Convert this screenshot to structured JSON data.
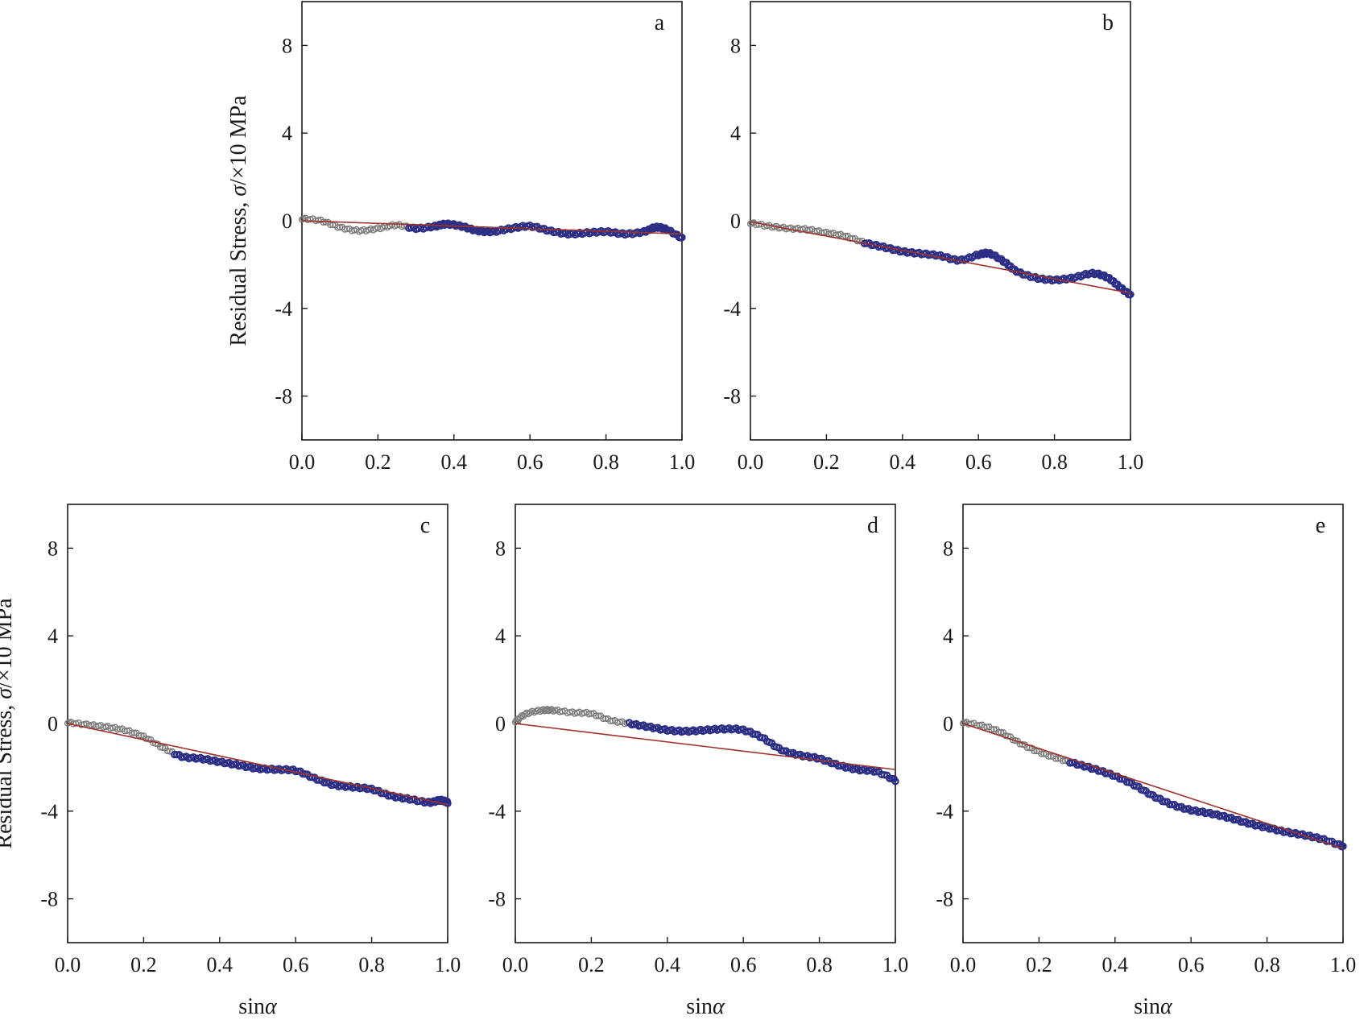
{
  "figure": {
    "ylabel_main": "Residual Stress, ",
    "ylabel_sym": "σ",
    "ylabel_unit": "/×10 MPa",
    "xlabel_main": "sin",
    "xlabel_sym": "α"
  },
  "colors": {
    "marker_light": "#7a7a7a",
    "marker_dark": "#2b2f85",
    "fit_line": "#a0302a",
    "axis": "#1a1a1a"
  },
  "chart_data": [
    {
      "type": "scatter",
      "label": "a",
      "show_ylabel": true,
      "show_xlabel": false,
      "xlim": [
        0,
        1
      ],
      "ylim": [
        -10,
        10
      ],
      "xticks": [
        "0.0",
        "0.2",
        "0.4",
        "0.6",
        "0.8",
        "1.0"
      ],
      "yticks": [
        "8",
        "4",
        "0",
        "-4",
        "-8"
      ],
      "fit": [
        [
          0,
          0.0
        ],
        [
          1,
          -0.6
        ]
      ],
      "points": [
        [
          0,
          0.1
        ],
        [
          0.05,
          0.0
        ],
        [
          0.1,
          -0.3
        ],
        [
          0.15,
          -0.45
        ],
        [
          0.2,
          -0.35
        ],
        [
          0.25,
          -0.2
        ],
        [
          0.3,
          -0.35
        ],
        [
          0.35,
          -0.25
        ],
        [
          0.38,
          -0.15
        ],
        [
          0.42,
          -0.25
        ],
        [
          0.46,
          -0.45
        ],
        [
          0.5,
          -0.5
        ],
        [
          0.55,
          -0.35
        ],
        [
          0.6,
          -0.25
        ],
        [
          0.65,
          -0.45
        ],
        [
          0.7,
          -0.6
        ],
        [
          0.75,
          -0.55
        ],
        [
          0.8,
          -0.5
        ],
        [
          0.85,
          -0.6
        ],
        [
          0.9,
          -0.5
        ],
        [
          0.93,
          -0.3
        ],
        [
          0.96,
          -0.4
        ],
        [
          1.0,
          -0.8
        ]
      ],
      "split": 0.28
    },
    {
      "type": "scatter",
      "label": "b",
      "show_ylabel": false,
      "show_xlabel": false,
      "xlim": [
        0,
        1
      ],
      "ylim": [
        -10,
        10
      ],
      "xticks": [
        "0.0",
        "0.2",
        "0.4",
        "0.6",
        "0.8",
        "1.0"
      ],
      "yticks": [
        "8",
        "4",
        "0",
        "-4",
        "-8"
      ],
      "fit": [
        [
          0,
          -0.05
        ],
        [
          1,
          -3.3
        ]
      ],
      "points": [
        [
          0,
          -0.1
        ],
        [
          0.05,
          -0.25
        ],
        [
          0.1,
          -0.35
        ],
        [
          0.15,
          -0.4
        ],
        [
          0.2,
          -0.55
        ],
        [
          0.25,
          -0.7
        ],
        [
          0.3,
          -1.0
        ],
        [
          0.35,
          -1.2
        ],
        [
          0.4,
          -1.4
        ],
        [
          0.45,
          -1.5
        ],
        [
          0.5,
          -1.6
        ],
        [
          0.55,
          -1.8
        ],
        [
          0.6,
          -1.55
        ],
        [
          0.63,
          -1.5
        ],
        [
          0.67,
          -1.9
        ],
        [
          0.7,
          -2.3
        ],
        [
          0.75,
          -2.6
        ],
        [
          0.8,
          -2.7
        ],
        [
          0.85,
          -2.6
        ],
        [
          0.9,
          -2.4
        ],
        [
          0.94,
          -2.6
        ],
        [
          0.97,
          -3.0
        ],
        [
          1.0,
          -3.4
        ]
      ],
      "split": 0.3
    },
    {
      "type": "scatter",
      "label": "c",
      "show_ylabel": true,
      "show_xlabel": true,
      "xlim": [
        0,
        1
      ],
      "ylim": [
        -10,
        10
      ],
      "xticks": [
        "0.0",
        "0.2",
        "0.4",
        "0.6",
        "0.8",
        "1.0"
      ],
      "yticks": [
        "8",
        "4",
        "0",
        "-4",
        "-8"
      ],
      "fit": [
        [
          0,
          0.0
        ],
        [
          1,
          -3.7
        ]
      ],
      "points": [
        [
          0,
          0.05
        ],
        [
          0.05,
          -0.05
        ],
        [
          0.1,
          -0.15
        ],
        [
          0.15,
          -0.3
        ],
        [
          0.2,
          -0.6
        ],
        [
          0.25,
          -1.1
        ],
        [
          0.3,
          -1.5
        ],
        [
          0.35,
          -1.6
        ],
        [
          0.4,
          -1.75
        ],
        [
          0.45,
          -1.9
        ],
        [
          0.5,
          -2.05
        ],
        [
          0.55,
          -2.1
        ],
        [
          0.6,
          -2.15
        ],
        [
          0.65,
          -2.5
        ],
        [
          0.7,
          -2.8
        ],
        [
          0.75,
          -2.9
        ],
        [
          0.8,
          -3.0
        ],
        [
          0.85,
          -3.3
        ],
        [
          0.9,
          -3.45
        ],
        [
          0.95,
          -3.6
        ],
        [
          0.98,
          -3.5
        ],
        [
          1.0,
          -3.6
        ]
      ],
      "split": 0.28
    },
    {
      "type": "scatter",
      "label": "d",
      "show_ylabel": false,
      "show_xlabel": true,
      "xlim": [
        0,
        1
      ],
      "ylim": [
        -10,
        10
      ],
      "xticks": [
        "0.0",
        "0.2",
        "0.4",
        "0.6",
        "0.8",
        "1.0"
      ],
      "yticks": [
        "8",
        "4",
        "0",
        "-4",
        "-8"
      ],
      "fit": [
        [
          0,
          0.0
        ],
        [
          1,
          -2.1
        ]
      ],
      "points": [
        [
          0,
          0.1
        ],
        [
          0.03,
          0.45
        ],
        [
          0.07,
          0.6
        ],
        [
          0.1,
          0.6
        ],
        [
          0.15,
          0.5
        ],
        [
          0.2,
          0.45
        ],
        [
          0.25,
          0.15
        ],
        [
          0.3,
          0.0
        ],
        [
          0.35,
          -0.15
        ],
        [
          0.4,
          -0.3
        ],
        [
          0.45,
          -0.35
        ],
        [
          0.5,
          -0.3
        ],
        [
          0.55,
          -0.25
        ],
        [
          0.6,
          -0.3
        ],
        [
          0.65,
          -0.65
        ],
        [
          0.7,
          -1.2
        ],
        [
          0.75,
          -1.45
        ],
        [
          0.8,
          -1.6
        ],
        [
          0.85,
          -1.9
        ],
        [
          0.9,
          -2.1
        ],
        [
          0.95,
          -2.2
        ],
        [
          1.0,
          -2.6
        ]
      ],
      "split": 0.3
    },
    {
      "type": "scatter",
      "label": "e",
      "show_ylabel": false,
      "show_xlabel": true,
      "xlim": [
        0,
        1
      ],
      "ylim": [
        -10,
        10
      ],
      "xticks": [
        "0.0",
        "0.2",
        "0.4",
        "0.6",
        "0.8",
        "1.0"
      ],
      "yticks": [
        "8",
        "4",
        "0",
        "-4",
        "-8"
      ],
      "fit": [
        [
          0,
          0.0
        ],
        [
          1,
          -5.7
        ]
      ],
      "points": [
        [
          0,
          0.05
        ],
        [
          0.05,
          -0.1
        ],
        [
          0.1,
          -0.4
        ],
        [
          0.15,
          -0.9
        ],
        [
          0.2,
          -1.3
        ],
        [
          0.25,
          -1.6
        ],
        [
          0.3,
          -1.85
        ],
        [
          0.35,
          -2.1
        ],
        [
          0.4,
          -2.4
        ],
        [
          0.45,
          -2.8
        ],
        [
          0.5,
          -3.3
        ],
        [
          0.55,
          -3.7
        ],
        [
          0.6,
          -3.95
        ],
        [
          0.65,
          -4.1
        ],
        [
          0.7,
          -4.3
        ],
        [
          0.75,
          -4.55
        ],
        [
          0.8,
          -4.75
        ],
        [
          0.85,
          -4.95
        ],
        [
          0.9,
          -5.1
        ],
        [
          0.95,
          -5.3
        ],
        [
          1.0,
          -5.6
        ]
      ],
      "split": 0.28
    }
  ]
}
